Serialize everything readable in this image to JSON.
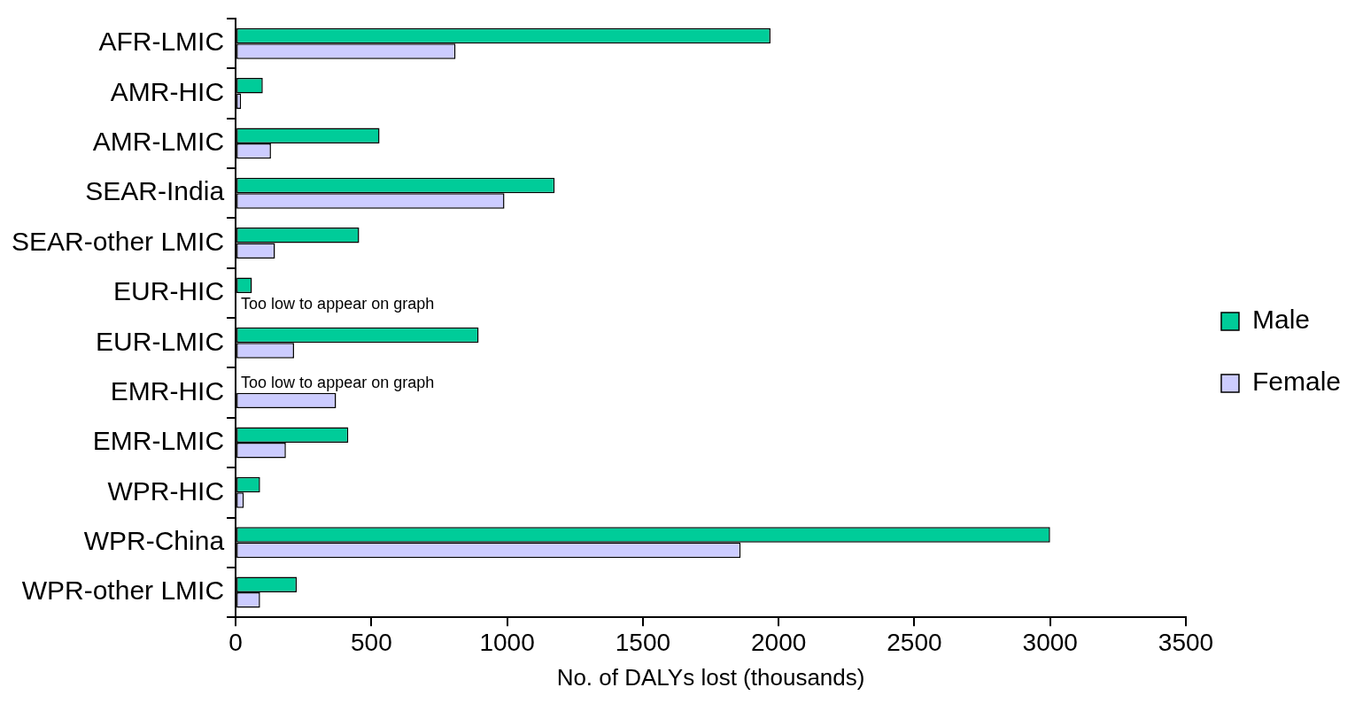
{
  "chart_data": {
    "type": "bar",
    "orientation": "horizontal",
    "xlabel": "No. of DALYs lost (thousands)",
    "categories": [
      "AFR-LMIC",
      "AMR-HIC",
      "AMR-LMIC",
      "SEAR-India",
      "SEAR-other LMIC",
      "EUR-HIC",
      "EUR-LMIC",
      "EMR-HIC",
      "EMR-LMIC",
      "WPR-HIC",
      "WPR-China",
      "WPR-other LMIC"
    ],
    "series": [
      {
        "name": "Male",
        "color": "#00cc99",
        "values": [
          1970,
          100,
          530,
          1175,
          455,
          60,
          895,
          null,
          415,
          90,
          3000,
          225
        ]
      },
      {
        "name": "Female",
        "color": "#ccccff",
        "values": [
          810,
          20,
          130,
          990,
          145,
          null,
          215,
          370,
          185,
          30,
          1860,
          90
        ]
      }
    ],
    "xlim": [
      0,
      3500
    ],
    "xticks": [
      0,
      500,
      1000,
      1500,
      2000,
      2500,
      3000,
      3500
    ],
    "annotations": [
      {
        "text": "Too low to appear on graph",
        "x": 0,
        "y": "EUR-HIC"
      },
      {
        "text": "Too low to appear on graph",
        "x": 0,
        "y": "EMR-HIC"
      }
    ],
    "legend": "right",
    "grid": false
  }
}
